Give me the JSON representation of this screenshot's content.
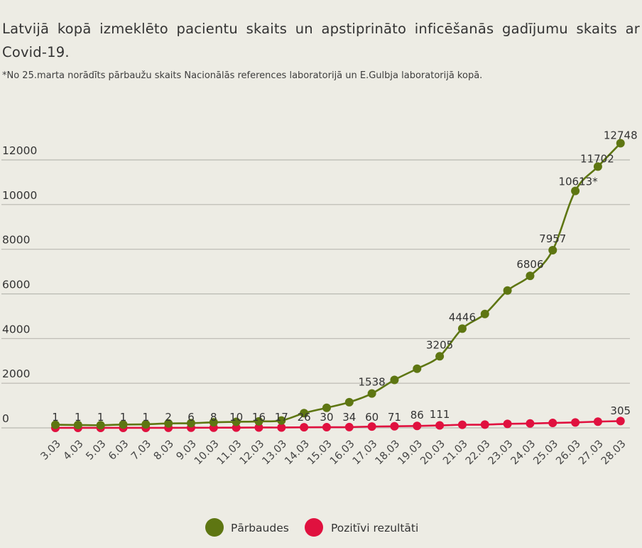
{
  "header": {
    "title": "Latvijā kopā izmeklēto pacientu skaits un apstiprināto inficēšanās gadījumu skaits ar Covid-19.",
    "note": "*No 25.marta norādīts pārbaužu skaits Nacionālās references laboratorijā un E.Gulbja laboratorijā kopā."
  },
  "chart_data": {
    "type": "line",
    "title": "Latvijā kopā izmeklēto pacientu skaits un apstiprināto inficēšanās gadījumu skaits ar Covid-19.",
    "x": [
      "3.03",
      "4.03",
      "5.03",
      "6.03",
      "7.03",
      "8.03",
      "9.03",
      "10.03",
      "11.03",
      "12.03",
      "13.03",
      "14.03",
      "15.03",
      "16.03",
      "17.03",
      "18.03",
      "19.03",
      "20.03",
      "21.03",
      "22.03",
      "23.03",
      "24.03",
      "25.03",
      "26.03",
      "27.03",
      "28.03"
    ],
    "ylim": [
      0,
      13000
    ],
    "yticks": [
      0,
      2000,
      4000,
      6000,
      8000,
      10000,
      12000
    ],
    "ytick_labels": [
      "0",
      "2000",
      "4000",
      "6000",
      "8000",
      "10000",
      "12000"
    ],
    "grid": true,
    "legend_position": "bottom",
    "series": [
      {
        "name": "Pārbaudes",
        "color": "#5e7612",
        "values": [
          140,
          130,
          120,
          150,
          160,
          200,
          210,
          250,
          270,
          290,
          330,
          660,
          900,
          1150,
          1538,
          2150,
          2650,
          3205,
          4446,
          5100,
          6150,
          6806,
          7957,
          10613,
          11702,
          12748
        ],
        "labels": [
          "",
          "",
          "",
          "",
          "",
          "",
          "",
          "",
          "",
          "",
          "",
          "",
          "",
          "",
          "1538",
          "",
          "",
          "3205",
          "4446",
          "",
          "",
          "6806",
          "7957",
          "10613*",
          "11702",
          "12748"
        ]
      },
      {
        "name": "Pozitīvi rezultāti",
        "color": "#e0113f",
        "values": [
          1,
          1,
          1,
          1,
          1,
          2,
          6,
          8,
          10,
          16,
          17,
          26,
          30,
          34,
          60,
          71,
          86,
          111,
          139,
          146,
          180,
          197,
          221,
          244,
          280,
          305
        ],
        "labels": [
          "1",
          "1",
          "1",
          "1",
          "1",
          "2",
          "6",
          "8",
          "10",
          "16",
          "17",
          "26",
          "30",
          "34",
          "60",
          "71",
          "86",
          "111",
          "",
          "",
          "",
          "",
          "",
          "",
          "",
          "305"
        ]
      }
    ]
  }
}
